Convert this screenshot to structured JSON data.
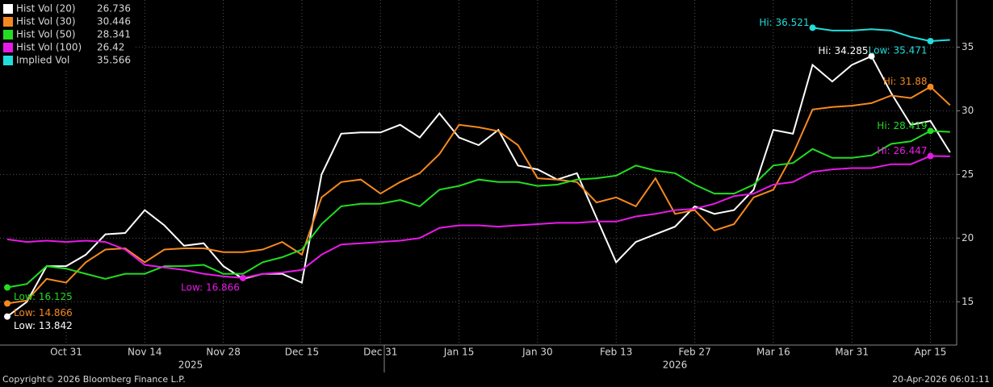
{
  "chart_data": {
    "type": "line",
    "categories": [
      null,
      null,
      null,
      "Oct 31",
      null,
      null,
      null,
      "Nov 14",
      null,
      null,
      null,
      "Nov 28",
      null,
      null,
      null,
      "Dec 15",
      null,
      null,
      null,
      "Dec 31",
      null,
      null,
      null,
      "Jan 15",
      null,
      null,
      null,
      "Jan 30",
      null,
      null,
      null,
      "Feb 13",
      null,
      null,
      null,
      "Feb 27",
      null,
      null,
      null,
      "Mar 16",
      null,
      null,
      null,
      "Mar 31",
      null,
      null,
      null,
      "Apr 15",
      null
    ],
    "years": [
      "2025",
      "2026"
    ],
    "ylim": [
      11.6,
      38.7
    ],
    "yticks": [
      15,
      20,
      25,
      30,
      35
    ],
    "grid": true,
    "series": [
      {
        "name": "Hist Vol (20)",
        "color": "#ffffff",
        "last": 26.736,
        "values": [
          13.842,
          15,
          17.8,
          17.8,
          18.7,
          20.3,
          20.4,
          22.2,
          21,
          19.4,
          19.6,
          17.8,
          16.8,
          17.2,
          17.2,
          16.5,
          25,
          28.2,
          28.3,
          28.3,
          28.9,
          27.9,
          29.8,
          27.9,
          27.3,
          28.5,
          25.7,
          25.4,
          24.6,
          25.1,
          21.6,
          18.1,
          19.7,
          20.3,
          20.9,
          22.5,
          21.9,
          22.2,
          23.8,
          28.5,
          28.2,
          33.6,
          32.3,
          33.6,
          34.285,
          31.4,
          28.9,
          29.2,
          26.736
        ],
        "low": {
          "value": 13.842,
          "label": "Low: 13.842"
        },
        "hi": {
          "value": 34.285,
          "label": "Hi: 34.285"
        }
      },
      {
        "name": "Hist Vol (30)",
        "color": "#f5891f",
        "last": 30.446,
        "values": [
          14.866,
          15.1,
          16.8,
          16.5,
          18.1,
          19.1,
          19.2,
          18.1,
          19.1,
          19.2,
          19.2,
          18.9,
          18.9,
          19.1,
          19.7,
          18.7,
          23.2,
          24.4,
          24.6,
          23.5,
          24.4,
          25.1,
          26.6,
          28.9,
          28.7,
          28.4,
          27.3,
          24.7,
          24.6,
          24.4,
          22.8,
          23.2,
          22.5,
          24.7,
          21.9,
          22.2,
          20.6,
          21.1,
          23.2,
          23.8,
          26.6,
          30.1,
          30.3,
          30.4,
          30.6,
          31.2,
          31,
          31.88,
          30.446
        ],
        "low": {
          "value": 14.866,
          "label": "Low: 14.866"
        },
        "hi": {
          "value": 31.88,
          "label": "Hi: 31.88"
        }
      },
      {
        "name": "Hist Vol (50)",
        "color": "#22dd22",
        "last": 28.341,
        "values": [
          16.125,
          16.4,
          17.8,
          17.6,
          17.2,
          16.8,
          17.2,
          17.2,
          17.8,
          17.8,
          17.9,
          17.2,
          17.2,
          18.1,
          18.5,
          19.1,
          21.1,
          22.5,
          22.7,
          22.7,
          23,
          22.5,
          23.8,
          24.1,
          24.6,
          24.4,
          24.4,
          24.1,
          24.2,
          24.6,
          24.7,
          24.9,
          25.7,
          25.3,
          25.1,
          24.2,
          23.5,
          23.5,
          24.2,
          25.7,
          25.9,
          27,
          26.3,
          26.3,
          26.5,
          27.4,
          27.6,
          28.419,
          28.341
        ],
        "low": {
          "value": 16.125,
          "label": "Low: 16.125"
        },
        "hi": {
          "value": 28.419,
          "label": "Hi: 28.419"
        }
      },
      {
        "name": "Hist Vol (100)",
        "color": "#e81ae8",
        "last": 26.42,
        "values": [
          19.9,
          19.7,
          19.8,
          19.7,
          19.8,
          19.7,
          19.1,
          17.9,
          17.7,
          17.5,
          17.2,
          17,
          16.866,
          17.2,
          17.3,
          17.5,
          18.7,
          19.5,
          19.6,
          19.7,
          19.8,
          20,
          20.8,
          21,
          21,
          20.9,
          21,
          21.1,
          21.2,
          21.2,
          21.3,
          21.3,
          21.7,
          21.9,
          22.2,
          22.3,
          22.7,
          23.3,
          23.5,
          24.2,
          24.4,
          25.2,
          25.4,
          25.5,
          25.5,
          25.8,
          25.8,
          26.447,
          26.42
        ],
        "low": {
          "value": 16.866,
          "label": "Low: 16.866"
        },
        "hi": {
          "value": 26.447,
          "label": "Hi: 26.447"
        }
      },
      {
        "name": "Implied Vol",
        "color": "#22dddd",
        "last": 35.566,
        "values": [
          null,
          null,
          null,
          null,
          null,
          null,
          null,
          null,
          null,
          null,
          null,
          null,
          null,
          null,
          null,
          null,
          null,
          null,
          null,
          null,
          null,
          null,
          null,
          null,
          null,
          null,
          null,
          null,
          null,
          null,
          null,
          null,
          null,
          null,
          null,
          null,
          null,
          null,
          null,
          null,
          null,
          36.521,
          36.3,
          36.3,
          36.4,
          36.3,
          35.8,
          35.471,
          35.566
        ],
        "low": {
          "value": 35.471,
          "label": "Low: 35.471"
        },
        "hi": {
          "value": 36.521,
          "label": "Hi: 36.521"
        }
      }
    ],
    "copyright": "Copyright© 2026 Bloomberg Finance L.P.",
    "timestamp": "20-Apr-2026 06:01:11"
  }
}
